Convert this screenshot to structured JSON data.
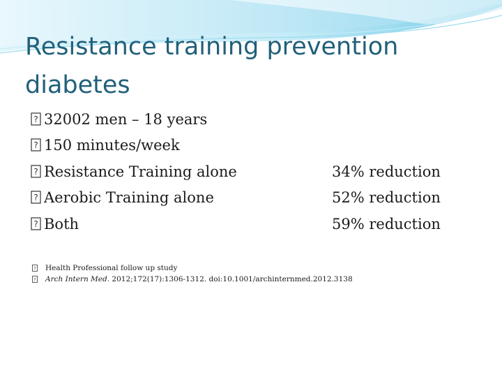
{
  "slide": {
    "title_lines": [
      "Resistance training prevention",
      "diabetes"
    ],
    "bullets": [
      "32002 men – 18 years",
      "150 minutes/week",
      "Resistance Training alone",
      "Aerobic Training alone",
      "Both"
    ],
    "results": [
      "34% reduction",
      "52% reduction",
      "59% reduction"
    ],
    "references": {
      "study": "Health Professional follow up study",
      "journal": "Arch Intern Med.",
      "citation": " 2012;172(17):1306-1312. doi:10.1001/archinternmed.2012.3138"
    },
    "colors": {
      "title": "#21607a",
      "wave_light": "#cdeefa",
      "wave_mid": "#8fd9f0",
      "wave_dark": "#3cb7dc"
    },
    "icons": {
      "bullet": "missing-glyph-box-icon"
    }
  }
}
